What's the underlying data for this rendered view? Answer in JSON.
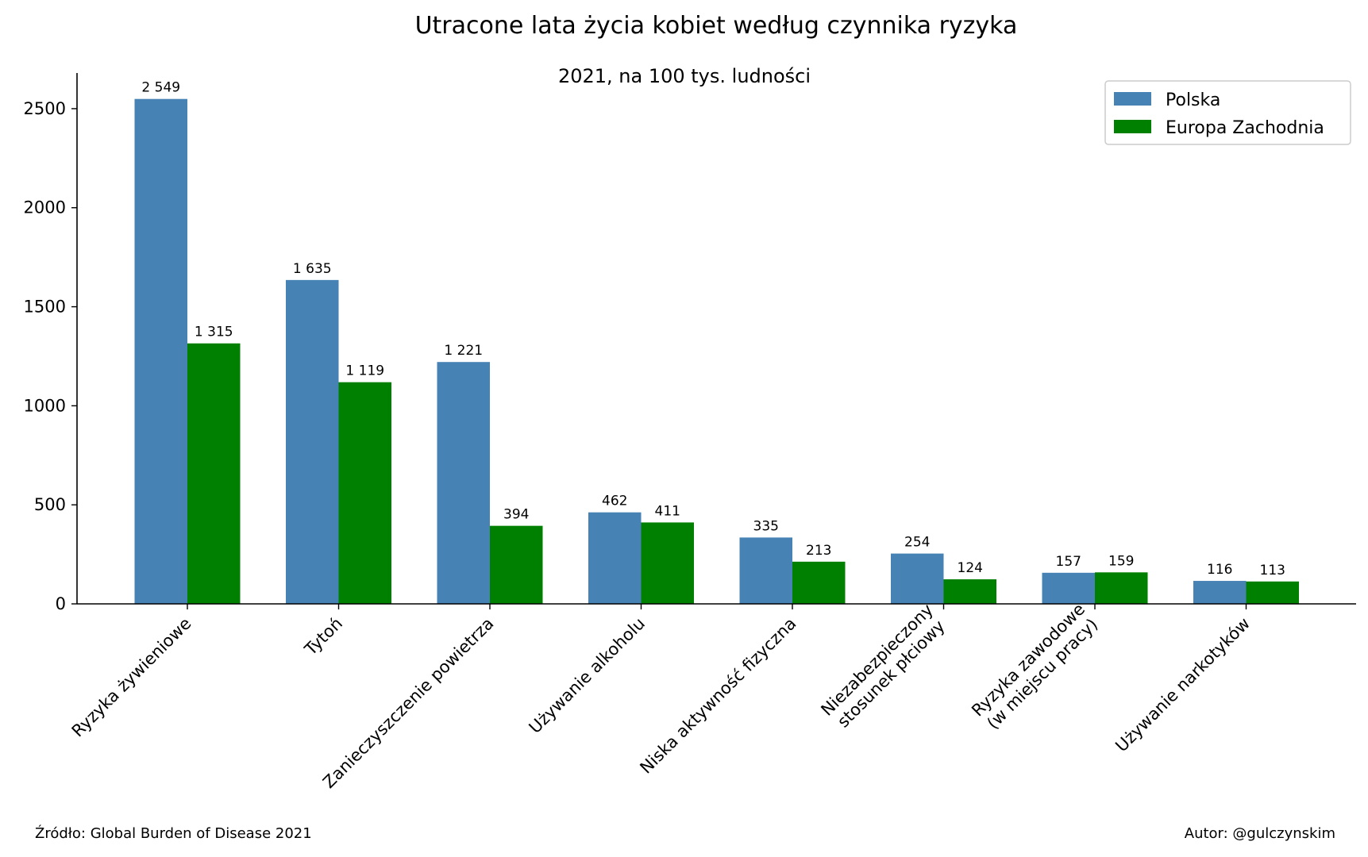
{
  "chart_data": {
    "type": "bar",
    "title": "Utracone lata życia kobiet według czynnika ryzyka",
    "subtitle": "2021, na 100 tys. ludności",
    "xlabel": "",
    "ylabel": "",
    "ylim": [
      0,
      2680
    ],
    "yticks": [
      0,
      500,
      1000,
      1500,
      2000,
      2500
    ],
    "categories": [
      [
        "Ryzyka żywieniowe"
      ],
      [
        "Tytoń"
      ],
      [
        "Zanieczyszczenie powietrza"
      ],
      [
        "Używanie alkoholu"
      ],
      [
        "Niska aktywność fizyczna"
      ],
      [
        "Niezabezpieczony",
        "stosunek płciowy"
      ],
      [
        "Ryzyka zawodowe",
        "(w miejscu pracy)"
      ],
      [
        "Używanie narkotyków"
      ]
    ],
    "series": [
      {
        "name": "Polska",
        "color": "#4682b4",
        "values": [
          2549,
          1635,
          1221,
          462,
          335,
          254,
          157,
          116
        ],
        "labels": [
          "2 549",
          "1 635",
          "1 221",
          "462",
          "335",
          "254",
          "157",
          "116"
        ]
      },
      {
        "name": "Europa Zachodnia",
        "color": "#008000",
        "values": [
          1315,
          1119,
          394,
          411,
          213,
          124,
          159,
          113
        ],
        "labels": [
          "1 315",
          "1 119",
          "394",
          "411",
          "213",
          "124",
          "159",
          "113"
        ]
      }
    ],
    "legend_position": "top-right",
    "grid": false
  },
  "footer": {
    "source": "Źródło: Global Burden of Disease 2021",
    "author": "Autor: @gulczynskim"
  }
}
